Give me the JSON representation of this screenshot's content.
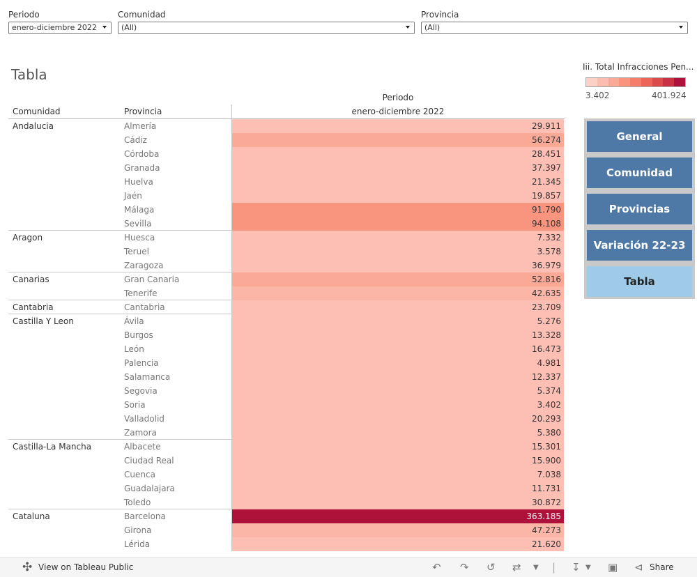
{
  "filters": {
    "periodo": {
      "label": "Periodo",
      "value": "enero-diciembre 2022"
    },
    "comunidad": {
      "label": "Comunidad",
      "value": "(All)"
    },
    "provincia": {
      "label": "Provincia",
      "value": "(All)"
    }
  },
  "sheet_title": "Tabla",
  "table": {
    "col_header_top": "Periodo",
    "col_header_period": "enero-diciembre 2022",
    "col_comunidad": "Comunidad",
    "col_provincia": "Provincia",
    "rows": [
      {
        "comunidad": "Andalucia",
        "provincia": "Almería",
        "value": "29.911",
        "color": "#fdbfb3"
      },
      {
        "comunidad": "",
        "provincia": "Cádiz",
        "value": "56.274",
        "color": "#fba997"
      },
      {
        "comunidad": "",
        "provincia": "Córdoba",
        "value": "28.451",
        "color": "#fdbfb3"
      },
      {
        "comunidad": "",
        "provincia": "Granada",
        "value": "37.397",
        "color": "#fdbfb3"
      },
      {
        "comunidad": "",
        "provincia": "Huelva",
        "value": "21.345",
        "color": "#fdbfb3"
      },
      {
        "comunidad": "",
        "provincia": "Jaén",
        "value": "19.857",
        "color": "#fdbfb3"
      },
      {
        "comunidad": "",
        "provincia": "Málaga",
        "value": "91.790",
        "color": "#f9957f"
      },
      {
        "comunidad": "",
        "provincia": "Sevilla",
        "value": "94.108",
        "color": "#f9957f"
      },
      {
        "comunidad": "Aragon",
        "provincia": "Huesca",
        "value": "7.332",
        "color": "#fdbfb3"
      },
      {
        "comunidad": "",
        "provincia": "Teruel",
        "value": "3.578",
        "color": "#fdbfb3"
      },
      {
        "comunidad": "",
        "provincia": "Zaragoza",
        "value": "36.979",
        "color": "#fdbfb3"
      },
      {
        "comunidad": "Canarias",
        "provincia": "Gran Canaria",
        "value": "52.816",
        "color": "#fba997"
      },
      {
        "comunidad": "",
        "provincia": "Tenerife",
        "value": "42.635",
        "color": "#fcb6a8"
      },
      {
        "comunidad": "Cantabria",
        "provincia": "Cantabria",
        "value": "23.709",
        "color": "#fdbfb3"
      },
      {
        "comunidad": "Castilla Y Leon",
        "provincia": "Ávila",
        "value": "5.276",
        "color": "#fdbfb3"
      },
      {
        "comunidad": "",
        "provincia": "Burgos",
        "value": "13.328",
        "color": "#fdbfb3"
      },
      {
        "comunidad": "",
        "provincia": "León",
        "value": "16.473",
        "color": "#fdbfb3"
      },
      {
        "comunidad": "",
        "provincia": "Palencia",
        "value": "4.981",
        "color": "#fdbfb3"
      },
      {
        "comunidad": "",
        "provincia": "Salamanca",
        "value": "12.337",
        "color": "#fdbfb3"
      },
      {
        "comunidad": "",
        "provincia": "Segovia",
        "value": "5.374",
        "color": "#fdbfb3"
      },
      {
        "comunidad": "",
        "provincia": "Soria",
        "value": "3.402",
        "color": "#fdbfb3"
      },
      {
        "comunidad": "",
        "provincia": "Valladolid",
        "value": "20.293",
        "color": "#fdbfb3"
      },
      {
        "comunidad": "",
        "provincia": "Zamora",
        "value": "5.380",
        "color": "#fdbfb3"
      },
      {
        "comunidad": "Castilla-La Mancha",
        "provincia": "Albacete",
        "value": "15.301",
        "color": "#fdbfb3"
      },
      {
        "comunidad": "",
        "provincia": "Ciudad Real",
        "value": "15.900",
        "color": "#fdbfb3"
      },
      {
        "comunidad": "",
        "provincia": "Cuenca",
        "value": "7.038",
        "color": "#fdbfb3"
      },
      {
        "comunidad": "",
        "provincia": "Guadalajara",
        "value": "11.731",
        "color": "#fdbfb3"
      },
      {
        "comunidad": "",
        "provincia": "Toledo",
        "value": "30.872",
        "color": "#fdbfb3"
      },
      {
        "comunidad": "Cataluna",
        "provincia": "Barcelona",
        "value": "363.185",
        "color": "#ae123a"
      },
      {
        "comunidad": "",
        "provincia": "Girona",
        "value": "47.273",
        "color": "#fcb6a8"
      },
      {
        "comunidad": "",
        "provincia": "Lérida",
        "value": "21.620",
        "color": "#fdbfb3"
      }
    ]
  },
  "legend": {
    "title": "Iii. Total Infracciones Pen...",
    "min": "3.402",
    "max": "401.924",
    "colors": [
      "#fdd0c6",
      "#fcbdb0",
      "#fba997",
      "#f9957f",
      "#f37e6a",
      "#ec6558",
      "#dc4b4c",
      "#c93145",
      "#ae123a"
    ]
  },
  "nav": {
    "buttons": [
      "General",
      "Comunidad",
      "Provincias",
      "Variación 22-23",
      "Tabla"
    ],
    "active": "Tabla"
  },
  "footer": {
    "view_label": "View on Tableau Public",
    "share_label": "Share"
  }
}
